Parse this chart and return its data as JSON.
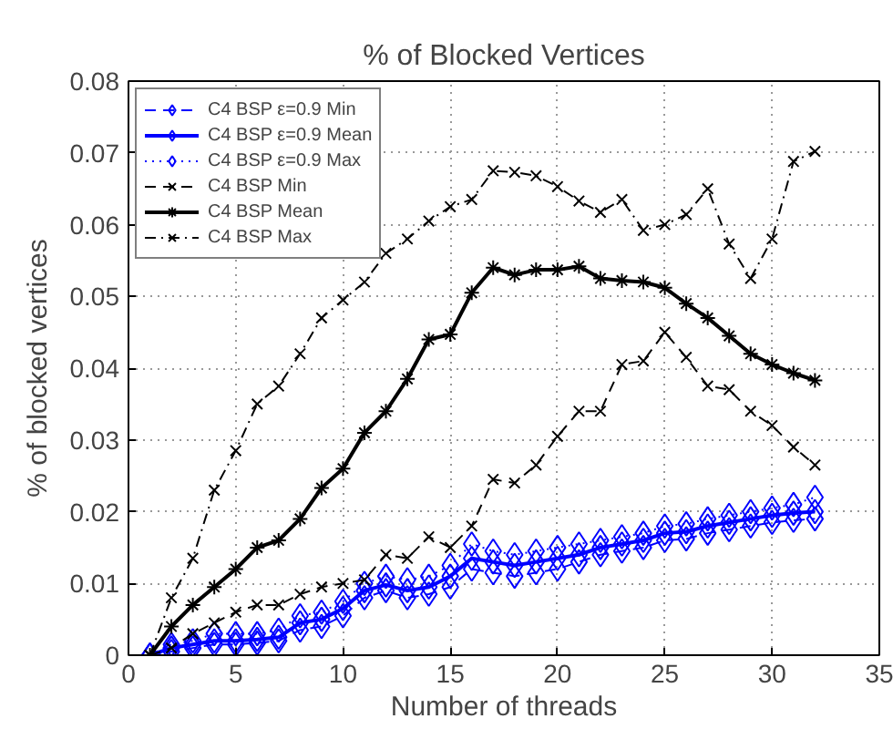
{
  "chart_data": {
    "type": "line",
    "title": "% of Blocked Vertices",
    "xlabel": "Number of threads",
    "ylabel": "% of blocked vertices",
    "x": [
      1,
      2,
      3,
      4,
      5,
      6,
      7,
      8,
      9,
      10,
      11,
      12,
      13,
      14,
      15,
      16,
      17,
      18,
      19,
      20,
      21,
      22,
      23,
      24,
      25,
      26,
      27,
      28,
      29,
      30,
      31,
      32
    ],
    "xlim": [
      0,
      35
    ],
    "xticks": [
      0,
      5,
      10,
      15,
      20,
      25,
      30,
      35
    ],
    "ylim": [
      0,
      0.08
    ],
    "yticks": [
      0,
      0.01,
      0.02,
      0.03,
      0.04,
      0.05,
      0.06,
      0.07,
      0.08
    ],
    "grid": true,
    "legend": "top left",
    "series": [
      {
        "name": "C4 BSP ε=0.9 Min",
        "color": "#0000ff",
        "marker": "diamond",
        "line_style": "dashed",
        "values": [
          0,
          0.0005,
          0.001,
          0.0015,
          0.0015,
          0.0017,
          0.002,
          0.0035,
          0.004,
          0.0055,
          0.008,
          0.009,
          0.008,
          0.0085,
          0.0095,
          0.012,
          0.0115,
          0.011,
          0.0115,
          0.012,
          0.013,
          0.014,
          0.0145,
          0.015,
          0.016,
          0.0162,
          0.017,
          0.0175,
          0.018,
          0.0185,
          0.0188,
          0.019
        ]
      },
      {
        "name": "C4 BSP ε=0.9 Mean",
        "color": "#0000ff",
        "marker": "diamond",
        "line_style": "solid",
        "values": [
          0,
          0.001,
          0.0015,
          0.002,
          0.002,
          0.0022,
          0.0025,
          0.0045,
          0.005,
          0.0065,
          0.009,
          0.0098,
          0.009,
          0.0095,
          0.011,
          0.0135,
          0.013,
          0.0125,
          0.013,
          0.0135,
          0.014,
          0.015,
          0.0155,
          0.016,
          0.017,
          0.0172,
          0.018,
          0.0185,
          0.019,
          0.0195,
          0.0198,
          0.02
        ]
      },
      {
        "name": "C4 BSP ε=0.9 Max",
        "color": "#0000ff",
        "marker": "diamond",
        "line_style": "dotted",
        "values": [
          0,
          0.0015,
          0.002,
          0.003,
          0.003,
          0.003,
          0.0035,
          0.0055,
          0.006,
          0.0075,
          0.01,
          0.011,
          0.0105,
          0.011,
          0.0125,
          0.0155,
          0.0145,
          0.014,
          0.0145,
          0.015,
          0.0155,
          0.016,
          0.0165,
          0.017,
          0.018,
          0.0183,
          0.019,
          0.0195,
          0.02,
          0.0205,
          0.021,
          0.022
        ]
      },
      {
        "name": "C4 BSP Min",
        "color": "#000000",
        "marker": "x",
        "line_style": "dashed",
        "values": [
          0,
          0.001,
          0.003,
          0.0045,
          0.006,
          0.007,
          0.007,
          0.0085,
          0.0095,
          0.01,
          0.0105,
          0.014,
          0.0135,
          0.0165,
          0.015,
          0.018,
          0.0245,
          0.024,
          0.0265,
          0.0305,
          0.034,
          0.034,
          0.0405,
          0.041,
          0.045,
          0.0415,
          0.0375,
          0.037,
          0.034,
          0.032,
          0.029,
          0.0265
        ]
      },
      {
        "name": "C4 BSP Mean",
        "color": "#000000",
        "marker": "cross",
        "line_style": "solid",
        "values": [
          0,
          0.004,
          0.007,
          0.0095,
          0.012,
          0.015,
          0.016,
          0.019,
          0.0233,
          0.026,
          0.031,
          0.034,
          0.0385,
          0.044,
          0.0447,
          0.0505,
          0.054,
          0.053,
          0.0537,
          0.0537,
          0.0542,
          0.0525,
          0.0522,
          0.052,
          0.0512,
          0.049,
          0.047,
          0.0445,
          0.042,
          0.0405,
          0.0393,
          0.0383
        ]
      },
      {
        "name": "C4 BSP Max",
        "color": "#000000",
        "marker": "x",
        "line_style": "dashdot",
        "values": [
          0,
          0.008,
          0.0135,
          0.023,
          0.0285,
          0.035,
          0.0375,
          0.042,
          0.047,
          0.0495,
          0.052,
          0.056,
          0.058,
          0.0605,
          0.0625,
          0.0635,
          0.0675,
          0.0673,
          0.0668,
          0.0653,
          0.0633,
          0.0617,
          0.0635,
          0.0592,
          0.06,
          0.0614,
          0.065,
          0.0573,
          0.0525,
          0.058,
          0.0688,
          0.0702
        ]
      }
    ]
  }
}
